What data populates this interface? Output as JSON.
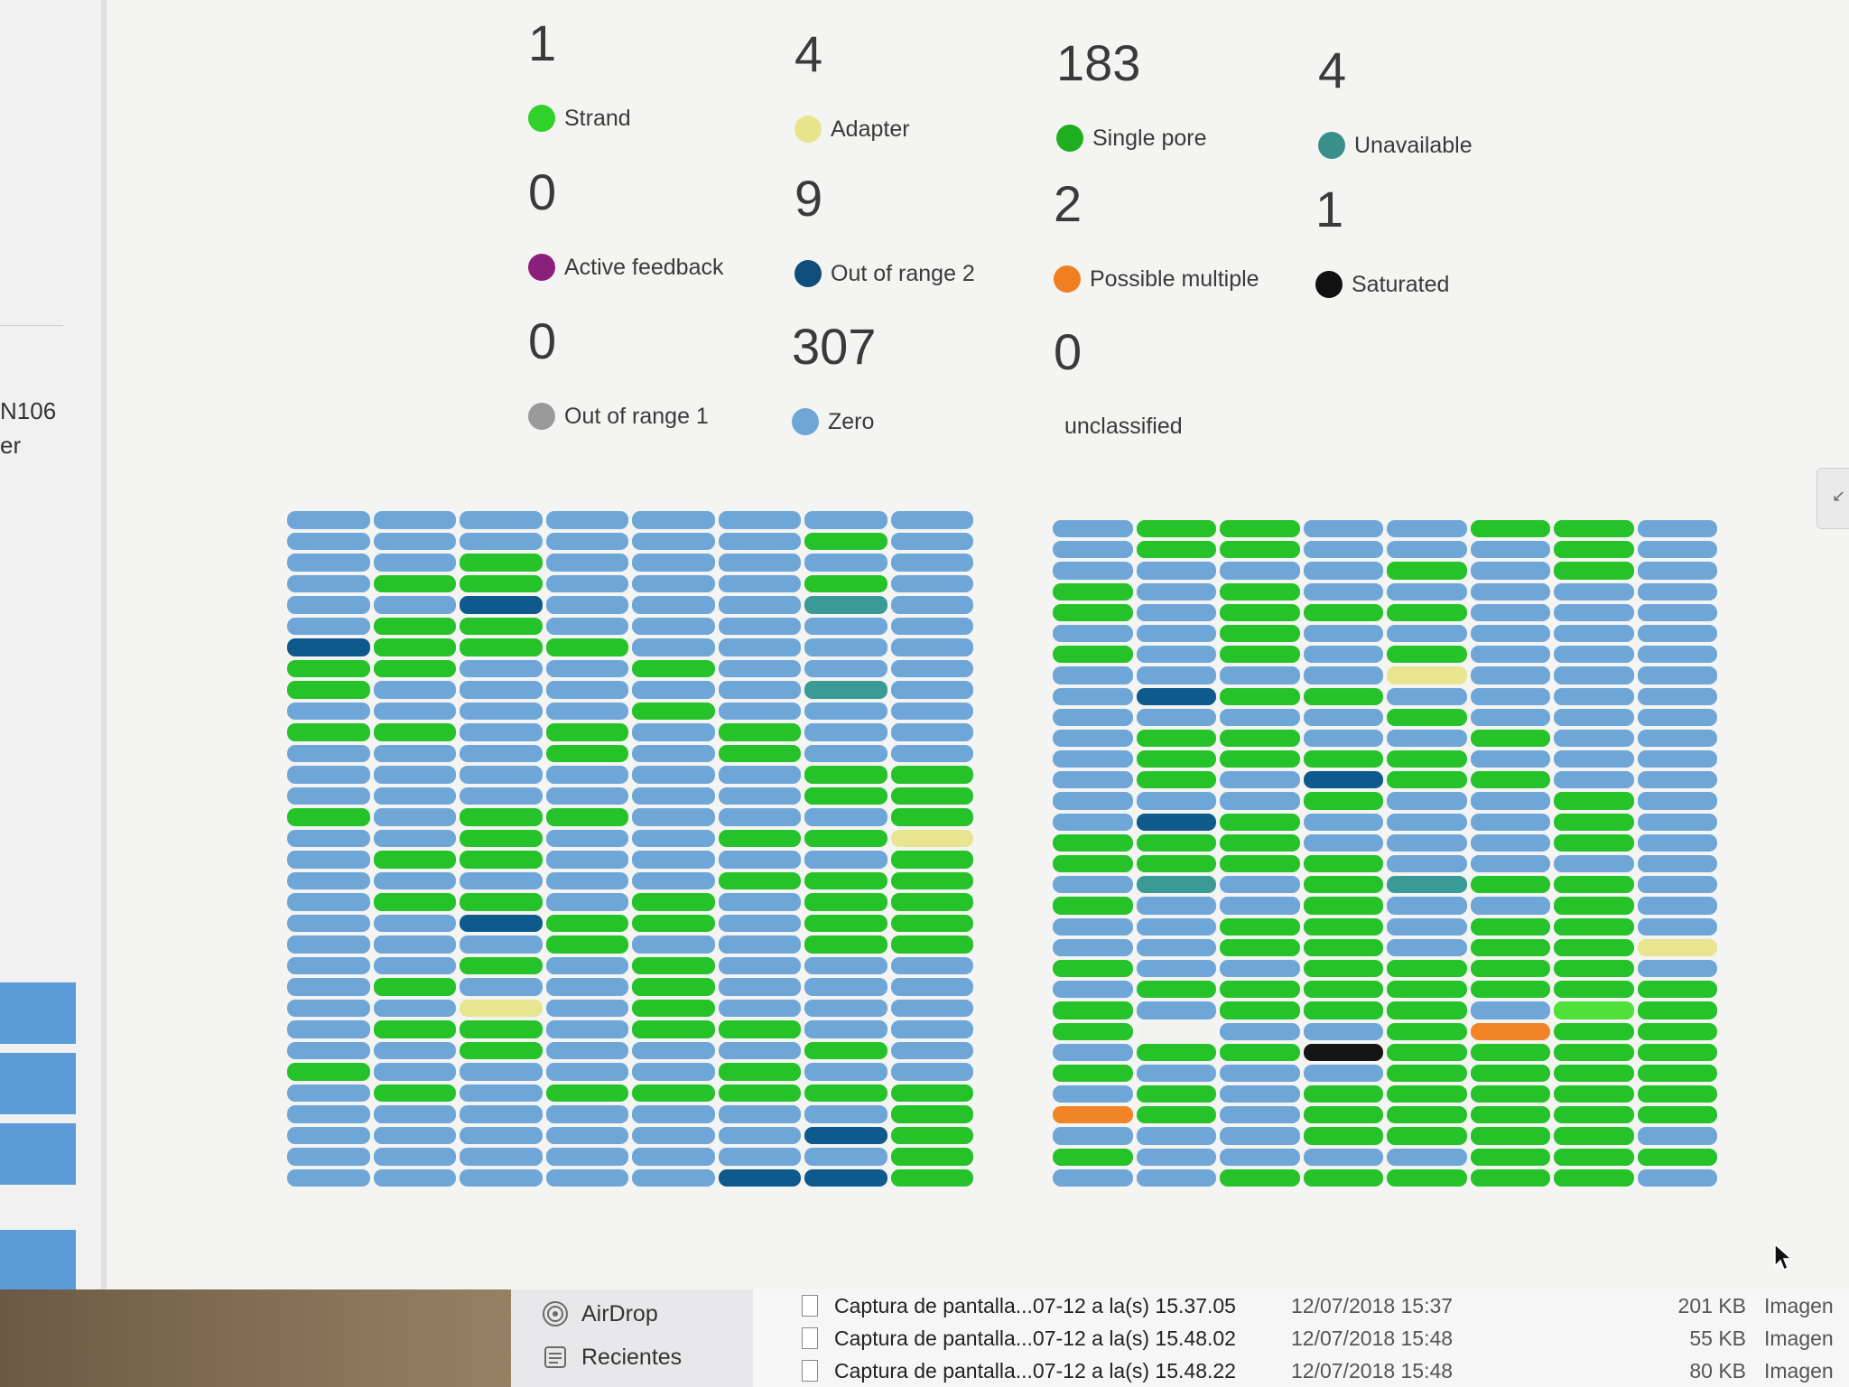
{
  "sidebar": {
    "device_id": "N106",
    "device_sub": "er"
  },
  "stats": [
    {
      "count": "1",
      "label": "Strand",
      "color": "#2fd12a"
    },
    {
      "count": "4",
      "label": "Adapter",
      "color": "#e8e48c"
    },
    {
      "count": "183",
      "label": "Single pore",
      "color": "#1fae1f"
    },
    {
      "count": "4",
      "label": "Unavailable",
      "color": "#3a8f8a"
    },
    {
      "count": "0",
      "label": "Active feedback",
      "color": "#8b1f7c"
    },
    {
      "count": "9",
      "label": "Out of range 2",
      "color": "#0e4d7c"
    },
    {
      "count": "2",
      "label": "Possible multiple",
      "color": "#f07f22"
    },
    {
      "count": "1",
      "label": "Saturated",
      "color": "#111111"
    },
    {
      "count": "0",
      "label": "Out of range 1",
      "color": "#9a9a9a"
    },
    {
      "count": "307",
      "label": "Zero",
      "color": "#6fa6d8"
    },
    {
      "count": "0",
      "label": "unclassified",
      "color": ""
    }
  ],
  "grid_colors": {
    "Z": "#6fa6d8",
    "G": "#26c22a",
    "S": "#4fe03a",
    "D": "#0e5a8c",
    "T": "#3a9a95",
    "Y": "#e8e490",
    "W": "#f2f2ec",
    "O": "#f08426",
    "K": "#151515"
  },
  "grid_left": [
    "ZZZZZZZZ",
    "ZZZZZZGZ",
    "ZZGZZZZZ",
    "ZGGZZZGZ",
    "ZZDZZZTZ",
    "ZGGZZZZZ",
    "DGGGZZZZ",
    "GGZZGZZZ",
    "GZZZZZTZ",
    "ZZZZGZZZ",
    "GGZGZGZZ",
    "ZZZGZGZZ",
    "ZZZZZZGG",
    "ZZZZZZGG",
    "GZGGZZZG",
    "ZZGZZGGY",
    "ZGGZZZZG",
    "ZZZZZGGG",
    "ZGGZGZGG",
    "ZZDGGZGG",
    "ZZZGZZGG",
    "ZZGZGZZZ",
    "ZGZZGZZZ",
    "ZZYZGZZZ",
    "ZGGZGGZZ",
    "ZZGZZZGZ",
    "GZZZZGZZ",
    "ZGZGGGGG",
    "ZZZZZZZG",
    "ZZZZZZDG",
    "ZZZZZZZG",
    "ZZZZZDDG"
  ],
  "grid_right": [
    "ZGGZZGGZ",
    "ZGGZZZGZ",
    "ZZZZGZGZ",
    "GZGZZZZZ",
    "GZGGGZZZ",
    "ZZGZZZZZ",
    "GZGZGZZZ",
    "ZZZZYZZZ",
    "ZDGGZZZZ",
    "ZZZZGZZZ",
    "ZGGZZGZZ",
    "ZGGGGZZZ",
    "ZGZDGGZZ",
    "ZZZGZZGZ",
    "ZDGZZZGZ",
    "GGGZZZGZ",
    "GGGGZZZZ",
    "ZTZGTGGZ",
    "GZZGZZGZ",
    "ZZGGZGGZ",
    "ZZGGZGGY",
    "GZZGGGGZ",
    "ZGGGGGGG",
    "GZGGGZSG",
    "GWZZGOGG",
    "ZGGKGGGG",
    "GZZZGGGG",
    "ZGZGGGGG",
    "OGZGGGGG",
    "ZZZGGGGZ",
    "GZZZZGGG",
    "ZZGGGGGZ"
  ],
  "finder": {
    "sidebar_items": [
      {
        "label": "AirDrop"
      },
      {
        "label": "Recientes"
      }
    ],
    "files": [
      {
        "name": "Captura de pantalla...07-12 a la(s) 15.37.05",
        "date": "12/07/2018 15:37",
        "size": "201 KB",
        "kind": "Imagen"
      },
      {
        "name": "Captura de pantalla...07-12 a la(s) 15.48.02",
        "date": "12/07/2018 15:48",
        "size": "55 KB",
        "kind": "Imagen"
      },
      {
        "name": "Captura de pantalla...07-12 a la(s) 15.48.22",
        "date": "12/07/2018 15:48",
        "size": "80 KB",
        "kind": "Imagen"
      }
    ]
  }
}
